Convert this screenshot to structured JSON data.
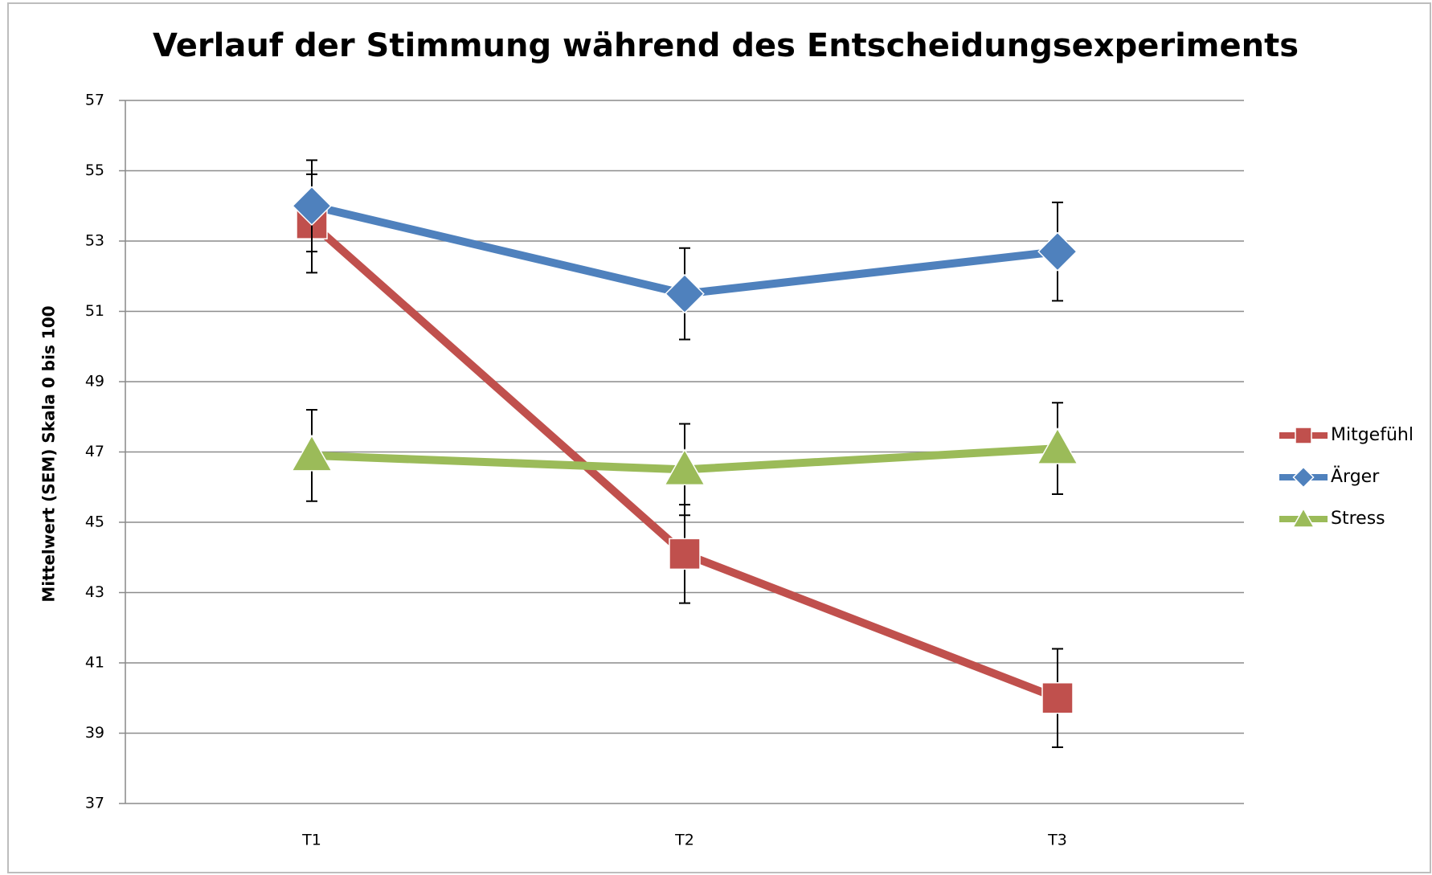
{
  "chart_data": {
    "type": "line",
    "title": "Verlauf der Stimmung während des Entscheidungsexperiments",
    "y_label": "Mittelwert (SEM) Skala 0 bis 100",
    "categories": [
      "T1",
      "T2",
      "T3"
    ],
    "series": [
      {
        "name": "Mitgefühl",
        "color": "#c0504d",
        "marker": "square",
        "values": [
          53.5,
          44.1,
          40.0
        ],
        "errors": [
          1.4,
          1.4,
          1.4
        ]
      },
      {
        "name": "Ärger",
        "color": "#4f81bd",
        "marker": "diamond",
        "values": [
          54.0,
          51.5,
          52.7
        ],
        "errors": [
          1.3,
          1.3,
          1.4
        ]
      },
      {
        "name": "Stress",
        "color": "#9bbb59",
        "marker": "triangle",
        "values": [
          46.9,
          46.5,
          47.1
        ],
        "errors": [
          1.3,
          1.3,
          1.3
        ]
      }
    ],
    "ylim": [
      37,
      57
    ],
    "yticks": [
      37,
      39,
      41,
      43,
      45,
      47,
      49,
      51,
      53,
      55,
      57
    ],
    "grid": true,
    "legend": "right"
  }
}
